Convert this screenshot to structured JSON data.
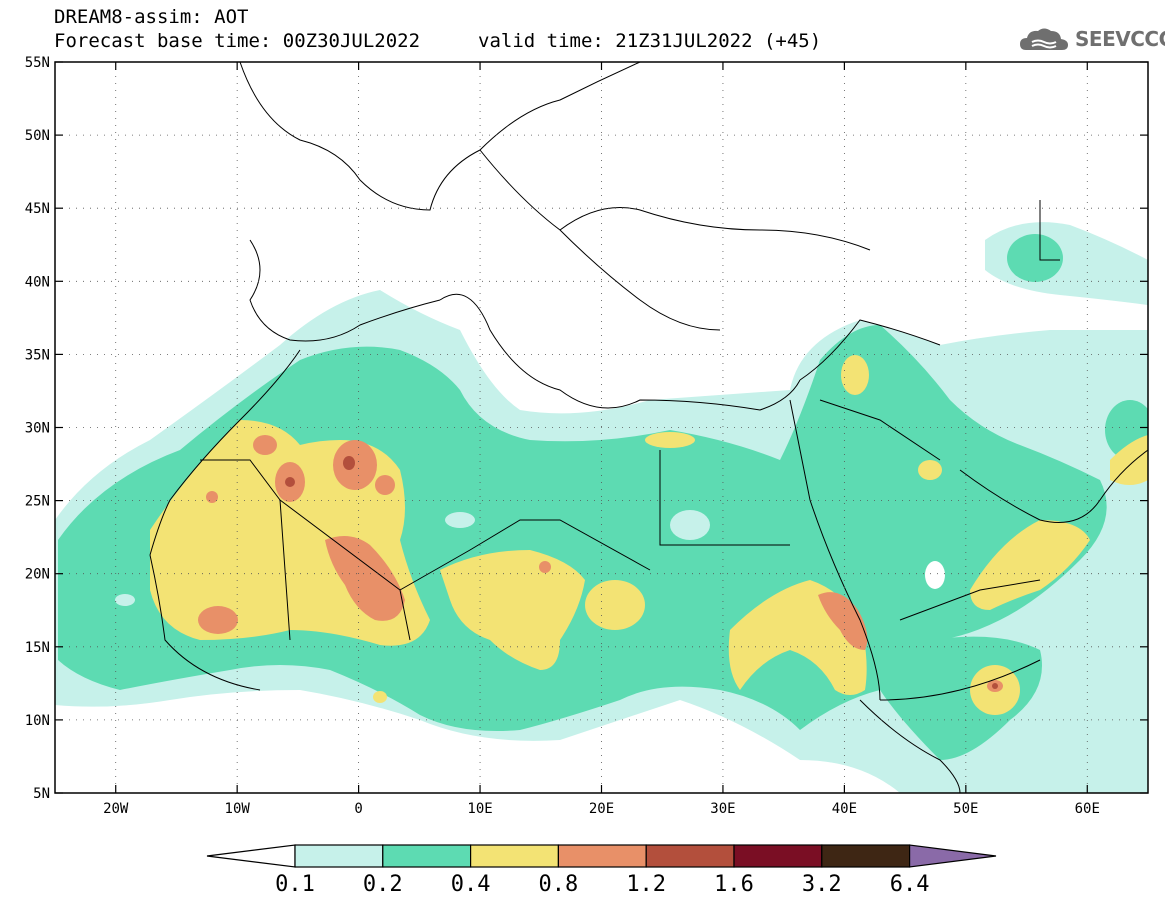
{
  "header": {
    "line1": "DREAM8-assim: AOT",
    "line2": "Forecast base time: 00Z30JUL2022",
    "line3": "valid time: 21Z31JUL2022 (+45)"
  },
  "logo": {
    "text": "SEEVCCC",
    "icon": "cloud-logo-icon"
  },
  "map": {
    "lon_range": [
      -25,
      65
    ],
    "lat_range": [
      5,
      55
    ],
    "lat_ticks": [
      {
        "v": 55,
        "label": "55N"
      },
      {
        "v": 50,
        "label": "50N"
      },
      {
        "v": 45,
        "label": "45N"
      },
      {
        "v": 40,
        "label": "40N"
      },
      {
        "v": 35,
        "label": "35N"
      },
      {
        "v": 30,
        "label": "30N"
      },
      {
        "v": 25,
        "label": "25N"
      },
      {
        "v": 20,
        "label": "20N"
      },
      {
        "v": 15,
        "label": "15N"
      },
      {
        "v": 10,
        "label": "10N"
      },
      {
        "v": 5,
        "label": "5N"
      }
    ],
    "lon_ticks": [
      {
        "v": -20,
        "label": "20W"
      },
      {
        "v": -10,
        "label": "10W"
      },
      {
        "v": 0,
        "label": "0"
      },
      {
        "v": 10,
        "label": "10E"
      },
      {
        "v": 20,
        "label": "20E"
      },
      {
        "v": 30,
        "label": "30E"
      },
      {
        "v": 40,
        "label": "40E"
      },
      {
        "v": 50,
        "label": "50E"
      },
      {
        "v": 60,
        "label": "60E"
      }
    ],
    "levels": [
      {
        "min": 0.1,
        "color": "#c6f1ea"
      },
      {
        "min": 0.2,
        "color": "#5ddbb2"
      },
      {
        "min": 0.4,
        "color": "#f3e374"
      },
      {
        "min": 0.8,
        "color": "#e89068"
      },
      {
        "min": 1.2,
        "color": "#b34f3c"
      },
      {
        "min": 1.6,
        "color": "#7a0e24"
      },
      {
        "min": 3.2,
        "color": "#3e2614"
      },
      {
        "min": 6.4,
        "color": "#8a6aa8"
      }
    ],
    "colorbar_labels": [
      "0.1",
      "0.2",
      "0.4",
      "0.8",
      "1.2",
      "1.6",
      "3.2",
      "6.4"
    ]
  }
}
